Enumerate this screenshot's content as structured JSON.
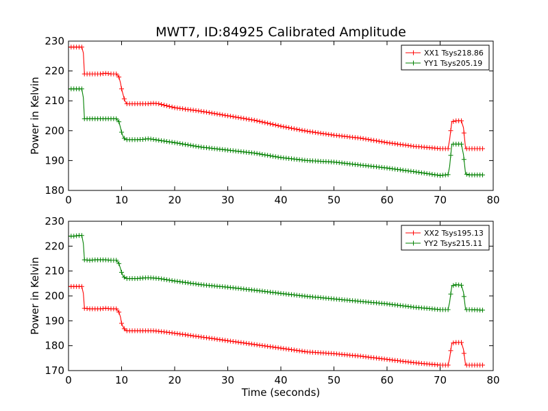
{
  "title": "MWT7, ID:84925 Calibrated Amplitude",
  "xlabel": "Time (seconds)",
  "colors": {
    "red": "#ff0000",
    "green": "#008000"
  },
  "chart_data": [
    {
      "type": "line",
      "ylabel": "Power in Kelvin",
      "xlim": [
        0,
        80
      ],
      "ylim": [
        180,
        230
      ],
      "xticks": [
        "0",
        "10",
        "20",
        "30",
        "40",
        "50",
        "60",
        "70",
        "80"
      ],
      "yticks": [
        "180",
        "190",
        "200",
        "210",
        "220",
        "230"
      ],
      "legend_position": "top-right",
      "series": [
        {
          "name": "XX1 Tsys218.86",
          "color": "#ff0000",
          "x": [
            0,
            1,
            2,
            2.5,
            2.8,
            3,
            4,
            5,
            6,
            7,
            8,
            9,
            9.5,
            9.8,
            10,
            10.3,
            10.6,
            11,
            12,
            13,
            14,
            15,
            16,
            17,
            20,
            25,
            30,
            35,
            40,
            45,
            50,
            55,
            60,
            65,
            70,
            71.5,
            71.8,
            72.2,
            73,
            74,
            74.4,
            74.8,
            75.5,
            78
          ],
          "y": [
            228,
            228,
            228,
            228,
            226,
            219,
            219,
            219,
            219,
            219.2,
            219,
            219,
            218,
            216,
            214,
            212,
            210,
            209,
            209,
            209,
            209,
            209,
            209.2,
            209,
            207.7,
            206.5,
            205,
            203.5,
            201.5,
            199.8,
            198.5,
            197.5,
            196,
            194.8,
            194,
            194,
            197,
            203,
            203.3,
            203.3,
            201,
            194,
            194,
            194
          ]
        },
        {
          "name": "YY1 Tsys205.19",
          "color": "#008000",
          "x": [
            0,
            1,
            2,
            2.5,
            2.8,
            3,
            4,
            5,
            6,
            7,
            8,
            9,
            9.5,
            9.8,
            10,
            10.3,
            10.6,
            11,
            12,
            13,
            14,
            15,
            16,
            17,
            20,
            25,
            30,
            35,
            40,
            45,
            50,
            55,
            60,
            65,
            70,
            71.5,
            71.8,
            72.2,
            73,
            74,
            74.4,
            74.8,
            75.5,
            78
          ],
          "y": [
            214,
            214,
            214,
            214,
            211,
            204,
            204,
            204,
            204,
            204,
            204,
            204,
            203,
            201,
            199.5,
            198,
            197.2,
            197,
            197,
            197,
            197.1,
            197.3,
            197.1,
            196.8,
            196,
            194.5,
            193.5,
            192.5,
            191,
            190,
            189.5,
            188.5,
            187.5,
            186.3,
            185,
            185.3,
            188,
            195.5,
            195.5,
            195.5,
            192,
            185.5,
            185.2,
            185.2
          ]
        }
      ]
    },
    {
      "type": "line",
      "ylabel": "Power in Kelvin",
      "xlabel": "Time (seconds)",
      "xlim": [
        0,
        80
      ],
      "ylim": [
        170,
        230
      ],
      "xticks": [
        "0",
        "10",
        "20",
        "30",
        "40",
        "50",
        "60",
        "70",
        "80"
      ],
      "yticks": [
        "170",
        "180",
        "190",
        "200",
        "210",
        "220",
        "230"
      ],
      "legend_position": "top-right",
      "series": [
        {
          "name": "XX2 Tsys195.13",
          "color": "#ff0000",
          "x": [
            0,
            1,
            2,
            2.5,
            2.8,
            3,
            4,
            5,
            6,
            7,
            8,
            9,
            9.5,
            9.8,
            10,
            10.3,
            10.6,
            11,
            12,
            13,
            14,
            15,
            16,
            17,
            20,
            25,
            30,
            35,
            40,
            45,
            50,
            55,
            60,
            65,
            70,
            71.5,
            71.8,
            72.2,
            73,
            74,
            74.4,
            74.8,
            75.5,
            78
          ],
          "y": [
            203.8,
            203.8,
            203.8,
            203.8,
            201,
            195,
            194.8,
            194.8,
            194.8,
            195,
            194.8,
            194.8,
            193.5,
            191.5,
            189,
            187.5,
            186.5,
            186,
            186,
            186,
            186,
            186,
            186,
            185.8,
            185,
            183.5,
            182,
            180.5,
            179,
            177.5,
            176.8,
            175.8,
            174.5,
            173.2,
            172.2,
            172.2,
            175,
            181,
            181.3,
            181.3,
            178.5,
            172.2,
            172.2,
            172.2
          ]
        },
        {
          "name": "YY2 Tsys215.11",
          "color": "#008000",
          "x": [
            0,
            1,
            2,
            2.5,
            2.8,
            3,
            4,
            5,
            6,
            7,
            8,
            9,
            9.5,
            9.8,
            10,
            10.3,
            10.6,
            11,
            12,
            13,
            14,
            15,
            16,
            17,
            20,
            25,
            30,
            35,
            40,
            45,
            50,
            55,
            60,
            65,
            70,
            71.5,
            71.8,
            72.2,
            73,
            74,
            74.4,
            74.8,
            75.5,
            78
          ],
          "y": [
            224,
            224,
            224.3,
            224.3,
            221,
            214.5,
            214.3,
            214.5,
            214.5,
            214.5,
            214.3,
            214.3,
            213,
            211,
            209.5,
            208,
            207.3,
            207,
            207,
            207,
            207.2,
            207.3,
            207.2,
            207,
            206,
            204.5,
            203.5,
            202.3,
            201,
            199.8,
            198.8,
            197.8,
            196.8,
            195.5,
            194.5,
            194.5,
            197.5,
            204,
            204.5,
            204.3,
            201.5,
            194.5,
            194.5,
            194.3
          ]
        }
      ]
    }
  ]
}
